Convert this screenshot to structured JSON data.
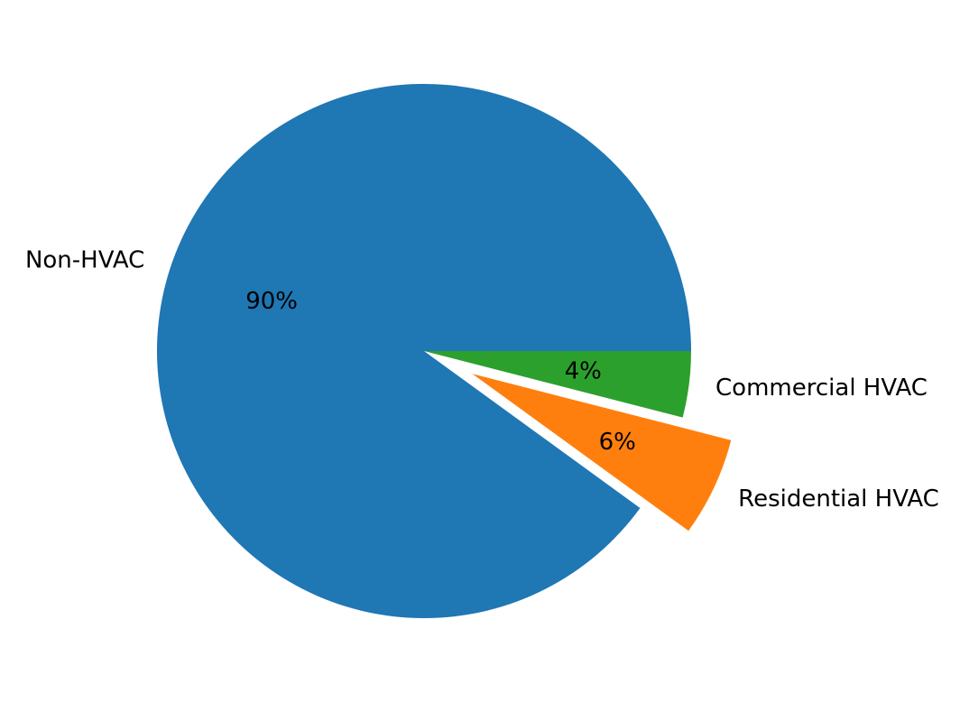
{
  "chart_data": {
    "type": "pie",
    "start_angle_deg": 0,
    "direction": "counterclockwise",
    "slices": [
      {
        "label": "Non-HVAC",
        "value": 90,
        "pct_label": "90%",
        "color": "#1f77b4",
        "explode": 0
      },
      {
        "label": "Residential HVAC",
        "value": 6,
        "pct_label": "6%",
        "color": "#ff7f0e",
        "explode": 0.2
      },
      {
        "label": "Commercial HVAC",
        "value": 4,
        "pct_label": "4%",
        "color": "#2ca02c",
        "explode": 0
      }
    ]
  }
}
